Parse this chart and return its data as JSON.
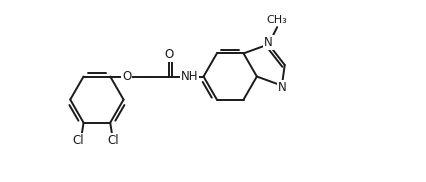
{
  "background": "#ffffff",
  "line_color": "#1a1a1a",
  "line_width": 1.4,
  "font_size": 8.5,
  "figsize": [
    4.26,
    1.82
  ],
  "dpi": 100,
  "xlim": [
    0.0,
    8.5
  ],
  "ylim": [
    -2.2,
    2.0
  ]
}
